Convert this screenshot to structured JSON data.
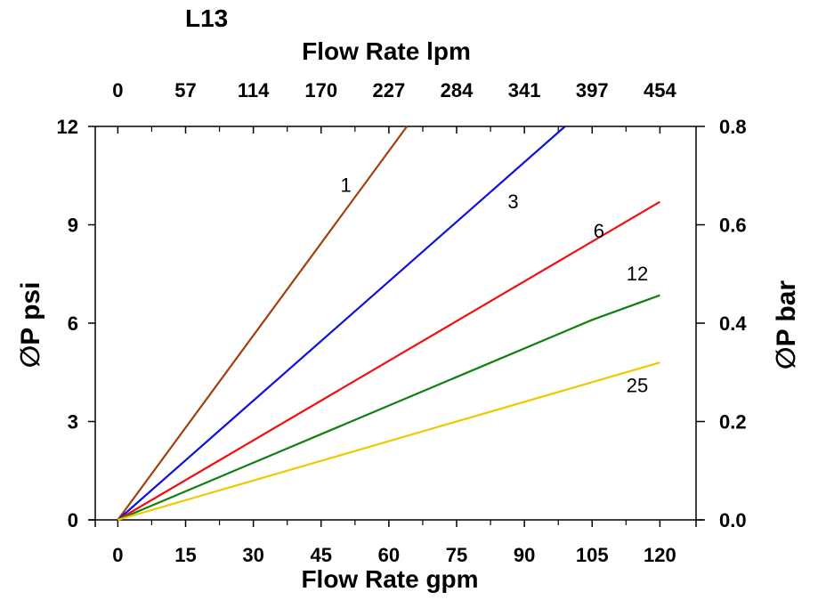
{
  "chart_data": {
    "type": "line",
    "title": "L13",
    "xlabel": "Flow Rate gpm",
    "x2label": "Flow Rate lpm",
    "ylabel": "∅P psi",
    "y2label": "∅P bar",
    "xlim": [
      -5,
      128
    ],
    "ylim": [
      0,
      12
    ],
    "y2lim": [
      0,
      0.8
    ],
    "x_ticks": [
      0,
      15,
      30,
      45,
      60,
      75,
      90,
      105,
      120
    ],
    "x_tick_labels": [
      "0",
      "15",
      "30",
      "45",
      "60",
      "75",
      "90",
      "105",
      "120"
    ],
    "x2_tick_labels": [
      "0",
      "57",
      "114",
      "170",
      "227",
      "284",
      "341",
      "397",
      "454"
    ],
    "y_ticks": [
      0,
      3,
      6,
      9,
      12
    ],
    "y_tick_labels": [
      "0",
      "3",
      "6",
      "9",
      "12"
    ],
    "y2_ticks": [
      0,
      0.2,
      0.4,
      0.6,
      0.8
    ],
    "y2_tick_labels": [
      "0.0",
      "0.2",
      "0.4",
      "0.6",
      "0.8"
    ],
    "series": [
      {
        "name": "1",
        "color": "#a0400a",
        "points": [
          [
            0,
            0
          ],
          [
            64,
            12
          ]
        ],
        "label_at": [
          50.5,
          10.0
        ]
      },
      {
        "name": "3",
        "color": "#1010e0",
        "points": [
          [
            0,
            0
          ],
          [
            99,
            12
          ]
        ],
        "label_at": [
          87.5,
          9.5
        ]
      },
      {
        "name": "6",
        "color": "#f01010",
        "points": [
          [
            0,
            0
          ],
          [
            120,
            9.7
          ]
        ],
        "label_at": [
          106.5,
          8.6
        ]
      },
      {
        "name": "12",
        "color": "#108010",
        "points": [
          [
            0,
            0
          ],
          [
            105,
            6.1
          ],
          [
            120,
            6.85
          ]
        ],
        "label_at": [
          115,
          7.3
        ]
      },
      {
        "name": "25",
        "color": "#f0c800",
        "points": [
          [
            0,
            0
          ],
          [
            120,
            4.8
          ]
        ],
        "label_at": [
          115,
          3.9
        ]
      }
    ]
  }
}
